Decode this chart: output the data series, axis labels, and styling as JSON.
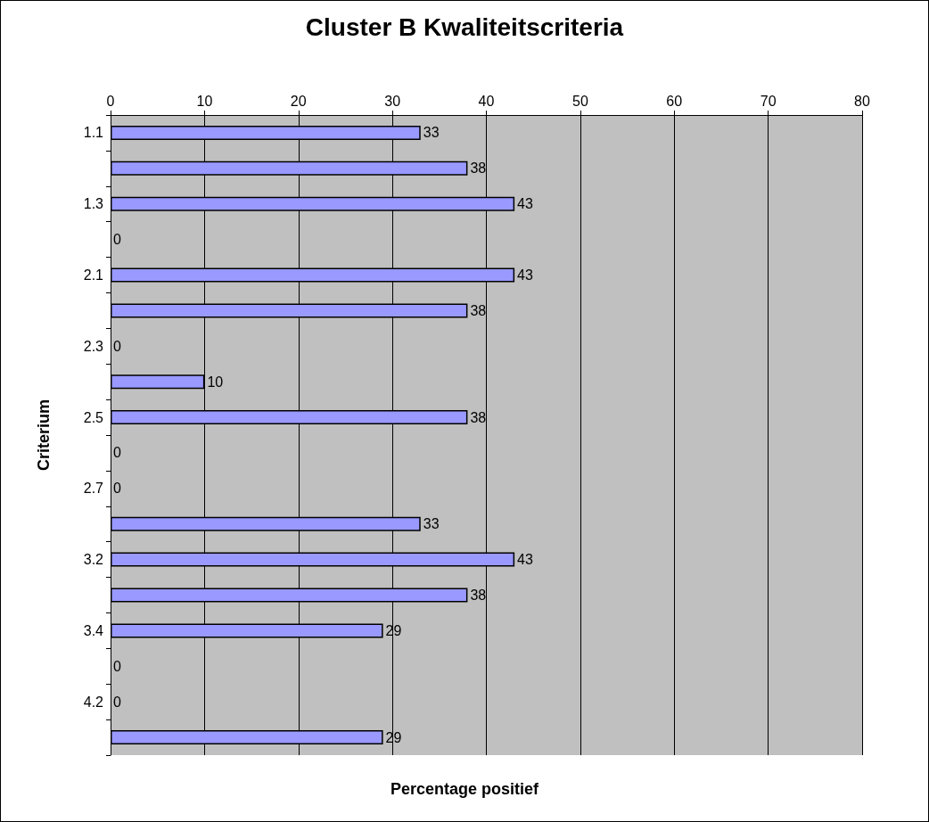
{
  "chart_data": {
    "type": "bar",
    "orientation": "horizontal",
    "title": "Cluster B Kwaliteitscriteria",
    "xlabel": "Percentage positief",
    "ylabel": "Criterium",
    "categories": [
      "1.1",
      null,
      "1.3",
      null,
      "2.1",
      null,
      "2.3",
      null,
      "2.5",
      null,
      "2.7",
      null,
      "3.2",
      null,
      "3.4",
      null,
      "4.2",
      null
    ],
    "values": [
      33,
      38,
      43,
      0,
      43,
      38,
      0,
      10,
      38,
      0,
      0,
      33,
      43,
      38,
      29,
      0,
      0,
      29
    ],
    "color": "#9999ff",
    "xlim": [
      0,
      80
    ],
    "xticks": [
      0,
      10,
      20,
      30,
      40,
      50,
      60,
      70,
      80
    ],
    "grid": "x",
    "data_labels": true
  }
}
